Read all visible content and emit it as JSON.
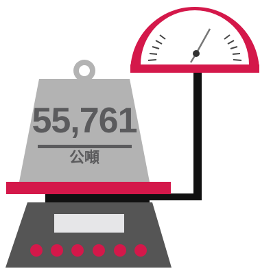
{
  "weight": {
    "value": "55,761",
    "unit": "公噸"
  },
  "icons": {
    "weight_block": "weight-icon",
    "gauge": "gauge-dial-icon",
    "scale": "scale-base-icon"
  },
  "colors": {
    "accent": "#d4184a",
    "weight_gray": "#b3b3b3",
    "text_gray": "#5b5b5d",
    "base_dark": "#555555",
    "pipe": "#111111"
  }
}
